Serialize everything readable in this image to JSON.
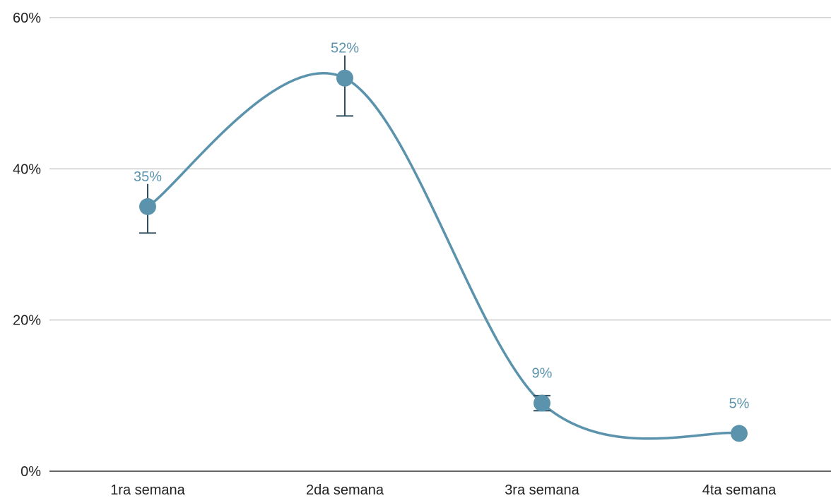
{
  "chart_data": {
    "type": "line",
    "title": "",
    "xlabel": "",
    "ylabel": "",
    "categories": [
      "1ra semana",
      "2da semana",
      "3ra semana",
      "4ta semana"
    ],
    "series": [
      {
        "values": [
          35,
          52,
          9,
          5
        ],
        "data_labels": [
          "35%",
          "52%",
          "9%",
          "5%"
        ],
        "error_low": [
          31.5,
          47,
          8,
          5
        ],
        "error_high": [
          38,
          55,
          10,
          5
        ],
        "color": "#5b93ad"
      }
    ],
    "ylim": [
      0,
      60
    ],
    "yticks": [
      0,
      20,
      40,
      60
    ],
    "ytick_labels": [
      "0%",
      "20%",
      "40%",
      "60%"
    ],
    "grid": true,
    "smooth": true,
    "legend": "none",
    "colors": {
      "series": "#5b93ad",
      "error_bar": "#2f4f5f",
      "grid": "#cccccc",
      "axis": "#333333",
      "tick_text": "#222222"
    }
  }
}
